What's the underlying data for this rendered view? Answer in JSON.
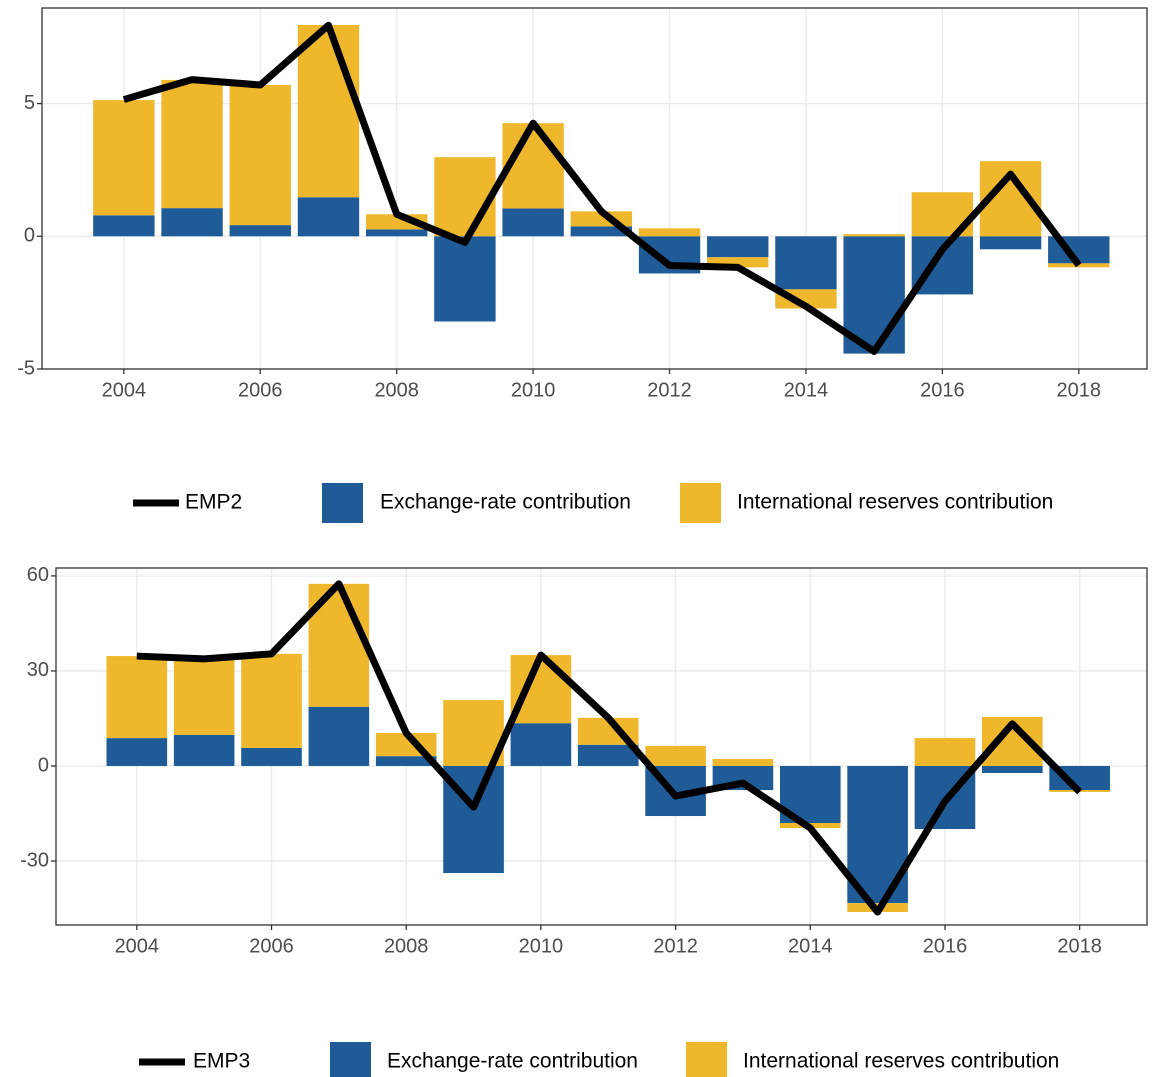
{
  "chart_data": [
    {
      "type": "bar",
      "stacked": true,
      "grid": true,
      "x": [
        2004,
        2005,
        2006,
        2007,
        2008,
        2009,
        2010,
        2011,
        2012,
        2013,
        2014,
        2015,
        2016,
        2017,
        2018
      ],
      "xlim": [
        2002.8,
        2019.0
      ],
      "xticks": [
        2004,
        2006,
        2008,
        2010,
        2012,
        2014,
        2016,
        2018
      ],
      "ylim": [
        -5.0,
        8.6
      ],
      "yticks": [
        -5,
        0,
        5
      ],
      "series": [
        {
          "name": "EMP2",
          "type": "line",
          "color": "#000000",
          "values": [
            5.15,
            5.9,
            5.7,
            7.95,
            0.83,
            -0.23,
            4.26,
            0.94,
            -1.1,
            -1.17,
            -2.64,
            -4.34,
            -0.5,
            2.34,
            -1.09
          ]
        },
        {
          "name": "Exchange-rate contribution",
          "type": "bar",
          "color": "#1e5b97",
          "values": [
            0.79,
            1.06,
            0.42,
            1.47,
            0.26,
            -3.21,
            1.05,
            0.37,
            -1.4,
            -0.79,
            -2.0,
            -4.42,
            -2.19,
            -0.49,
            -1.02
          ]
        },
        {
          "name": "International reserves contribution",
          "type": "bar",
          "color": "#efb82c",
          "values": [
            4.34,
            4.83,
            5.28,
            6.49,
            0.57,
            2.98,
            3.21,
            0.57,
            0.3,
            -0.38,
            -0.72,
            0.08,
            1.66,
            2.83,
            -0.15
          ]
        }
      ]
    },
    {
      "type": "bar",
      "stacked": true,
      "grid": true,
      "x": [
        2004,
        2005,
        2006,
        2007,
        2008,
        2009,
        2010,
        2011,
        2012,
        2013,
        2014,
        2015,
        2016,
        2017,
        2018
      ],
      "xlim": [
        2002.8,
        2019.0
      ],
      "xticks": [
        2004,
        2006,
        2008,
        2010,
        2012,
        2014,
        2016,
        2018
      ],
      "ylim": [
        -50.2,
        62.5
      ],
      "yticks": [
        -30,
        0,
        30,
        60
      ],
      "series": [
        {
          "name": "EMP3",
          "type": "line",
          "color": "#000000",
          "values": [
            34.7,
            33.8,
            35.4,
            57.5,
            10.4,
            -13.0,
            35.0,
            15.2,
            -9.5,
            -5.4,
            -19.6,
            -46.1,
            -11.1,
            13.3,
            -8.2
          ]
        },
        {
          "name": "Exchange-rate contribution",
          "type": "bar",
          "color": "#1e5b97",
          "values": [
            8.8,
            9.8,
            5.7,
            18.7,
            3.1,
            -33.8,
            13.5,
            6.7,
            -15.8,
            -7.6,
            -18.0,
            -43.3,
            -19.9,
            -2.2,
            -7.6
          ]
        },
        {
          "name": "International reserves contribution",
          "type": "bar",
          "color": "#efb82c",
          "values": [
            25.9,
            24.0,
            29.7,
            38.8,
            7.3,
            20.8,
            21.5,
            8.5,
            6.3,
            2.2,
            -1.6,
            -2.8,
            8.8,
            15.5,
            -0.6
          ]
        }
      ]
    }
  ]
}
